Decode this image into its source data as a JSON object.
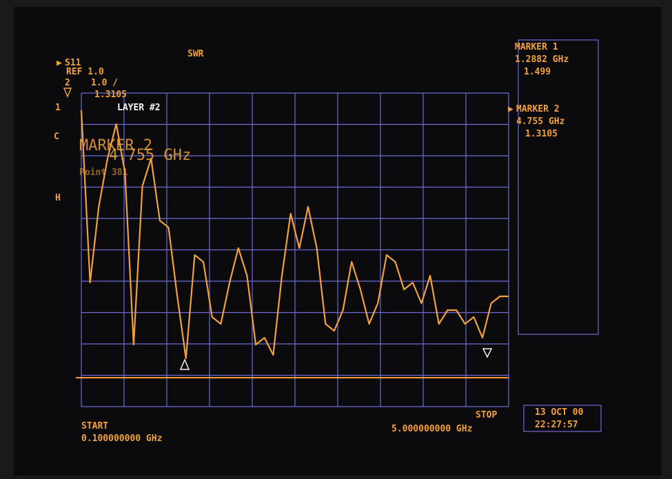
{
  "header": {
    "parameter": "S11",
    "format": "SWR",
    "reference": "REF 1.0",
    "marker_index": "2",
    "scale": "1.0 /",
    "marker_value": "1.3105",
    "trace_index": "1",
    "layer": "LAYER #2",
    "channel_c": "C",
    "channel_h": "H"
  },
  "active_marker": {
    "title": "MARKER 2",
    "frequency": "4.755 GHz",
    "point": "Point 381"
  },
  "marker_panel": [
    {
      "title": "MARKER 1",
      "frequency": "1.2882 GHz",
      "value": "1.499"
    },
    {
      "title": "MARKER 2",
      "frequency": "4.755 GHz",
      "value": "1.3105"
    }
  ],
  "footer": {
    "start_label": "START",
    "start_value": "0.100000000 GHz",
    "stop_label": "STOP",
    "stop_value": "5.000000000 GHz",
    "date": "13 OCT 00",
    "time": "22:27:57"
  },
  "chart_data": {
    "type": "line",
    "color": "#f2a23a",
    "x": [
      0.1,
      0.2,
      0.3,
      0.4,
      0.5,
      0.6,
      0.7,
      0.8,
      0.9,
      1.0,
      1.1,
      1.2,
      1.3,
      1.4,
      1.5,
      1.6,
      1.7,
      1.8,
      1.9,
      2.0,
      2.1,
      2.2,
      2.3,
      2.4,
      2.5,
      2.6,
      2.7,
      2.8,
      2.9,
      3.0,
      3.1,
      3.2,
      3.3,
      3.4,
      3.5,
      3.6,
      3.7,
      3.8,
      3.9,
      4.0,
      4.1,
      4.2,
      4.3,
      4.4,
      4.5,
      4.6,
      4.7,
      4.8,
      4.9,
      5.0
    ],
    "values": [
      4.88,
      2.38,
      3.48,
      4.18,
      4.68,
      3.98,
      1.48,
      3.78,
      4.18,
      3.28,
      3.18,
      2.18,
      1.28,
      2.78,
      2.68,
      1.88,
      1.78,
      2.38,
      2.88,
      2.48,
      1.48,
      1.58,
      1.33,
      2.48,
      3.38,
      2.88,
      3.48,
      2.88,
      1.78,
      1.68,
      1.98,
      2.68,
      2.28,
      1.78,
      2.08,
      2.78,
      2.68,
      2.28,
      2.38,
      2.08,
      2.48,
      1.78,
      1.98,
      1.98,
      1.78,
      1.88,
      1.58,
      2.08,
      2.18,
      2.18
    ],
    "xlim": [
      0.1,
      5.0
    ],
    "ylim": [
      0.58,
      5.13
    ]
  }
}
